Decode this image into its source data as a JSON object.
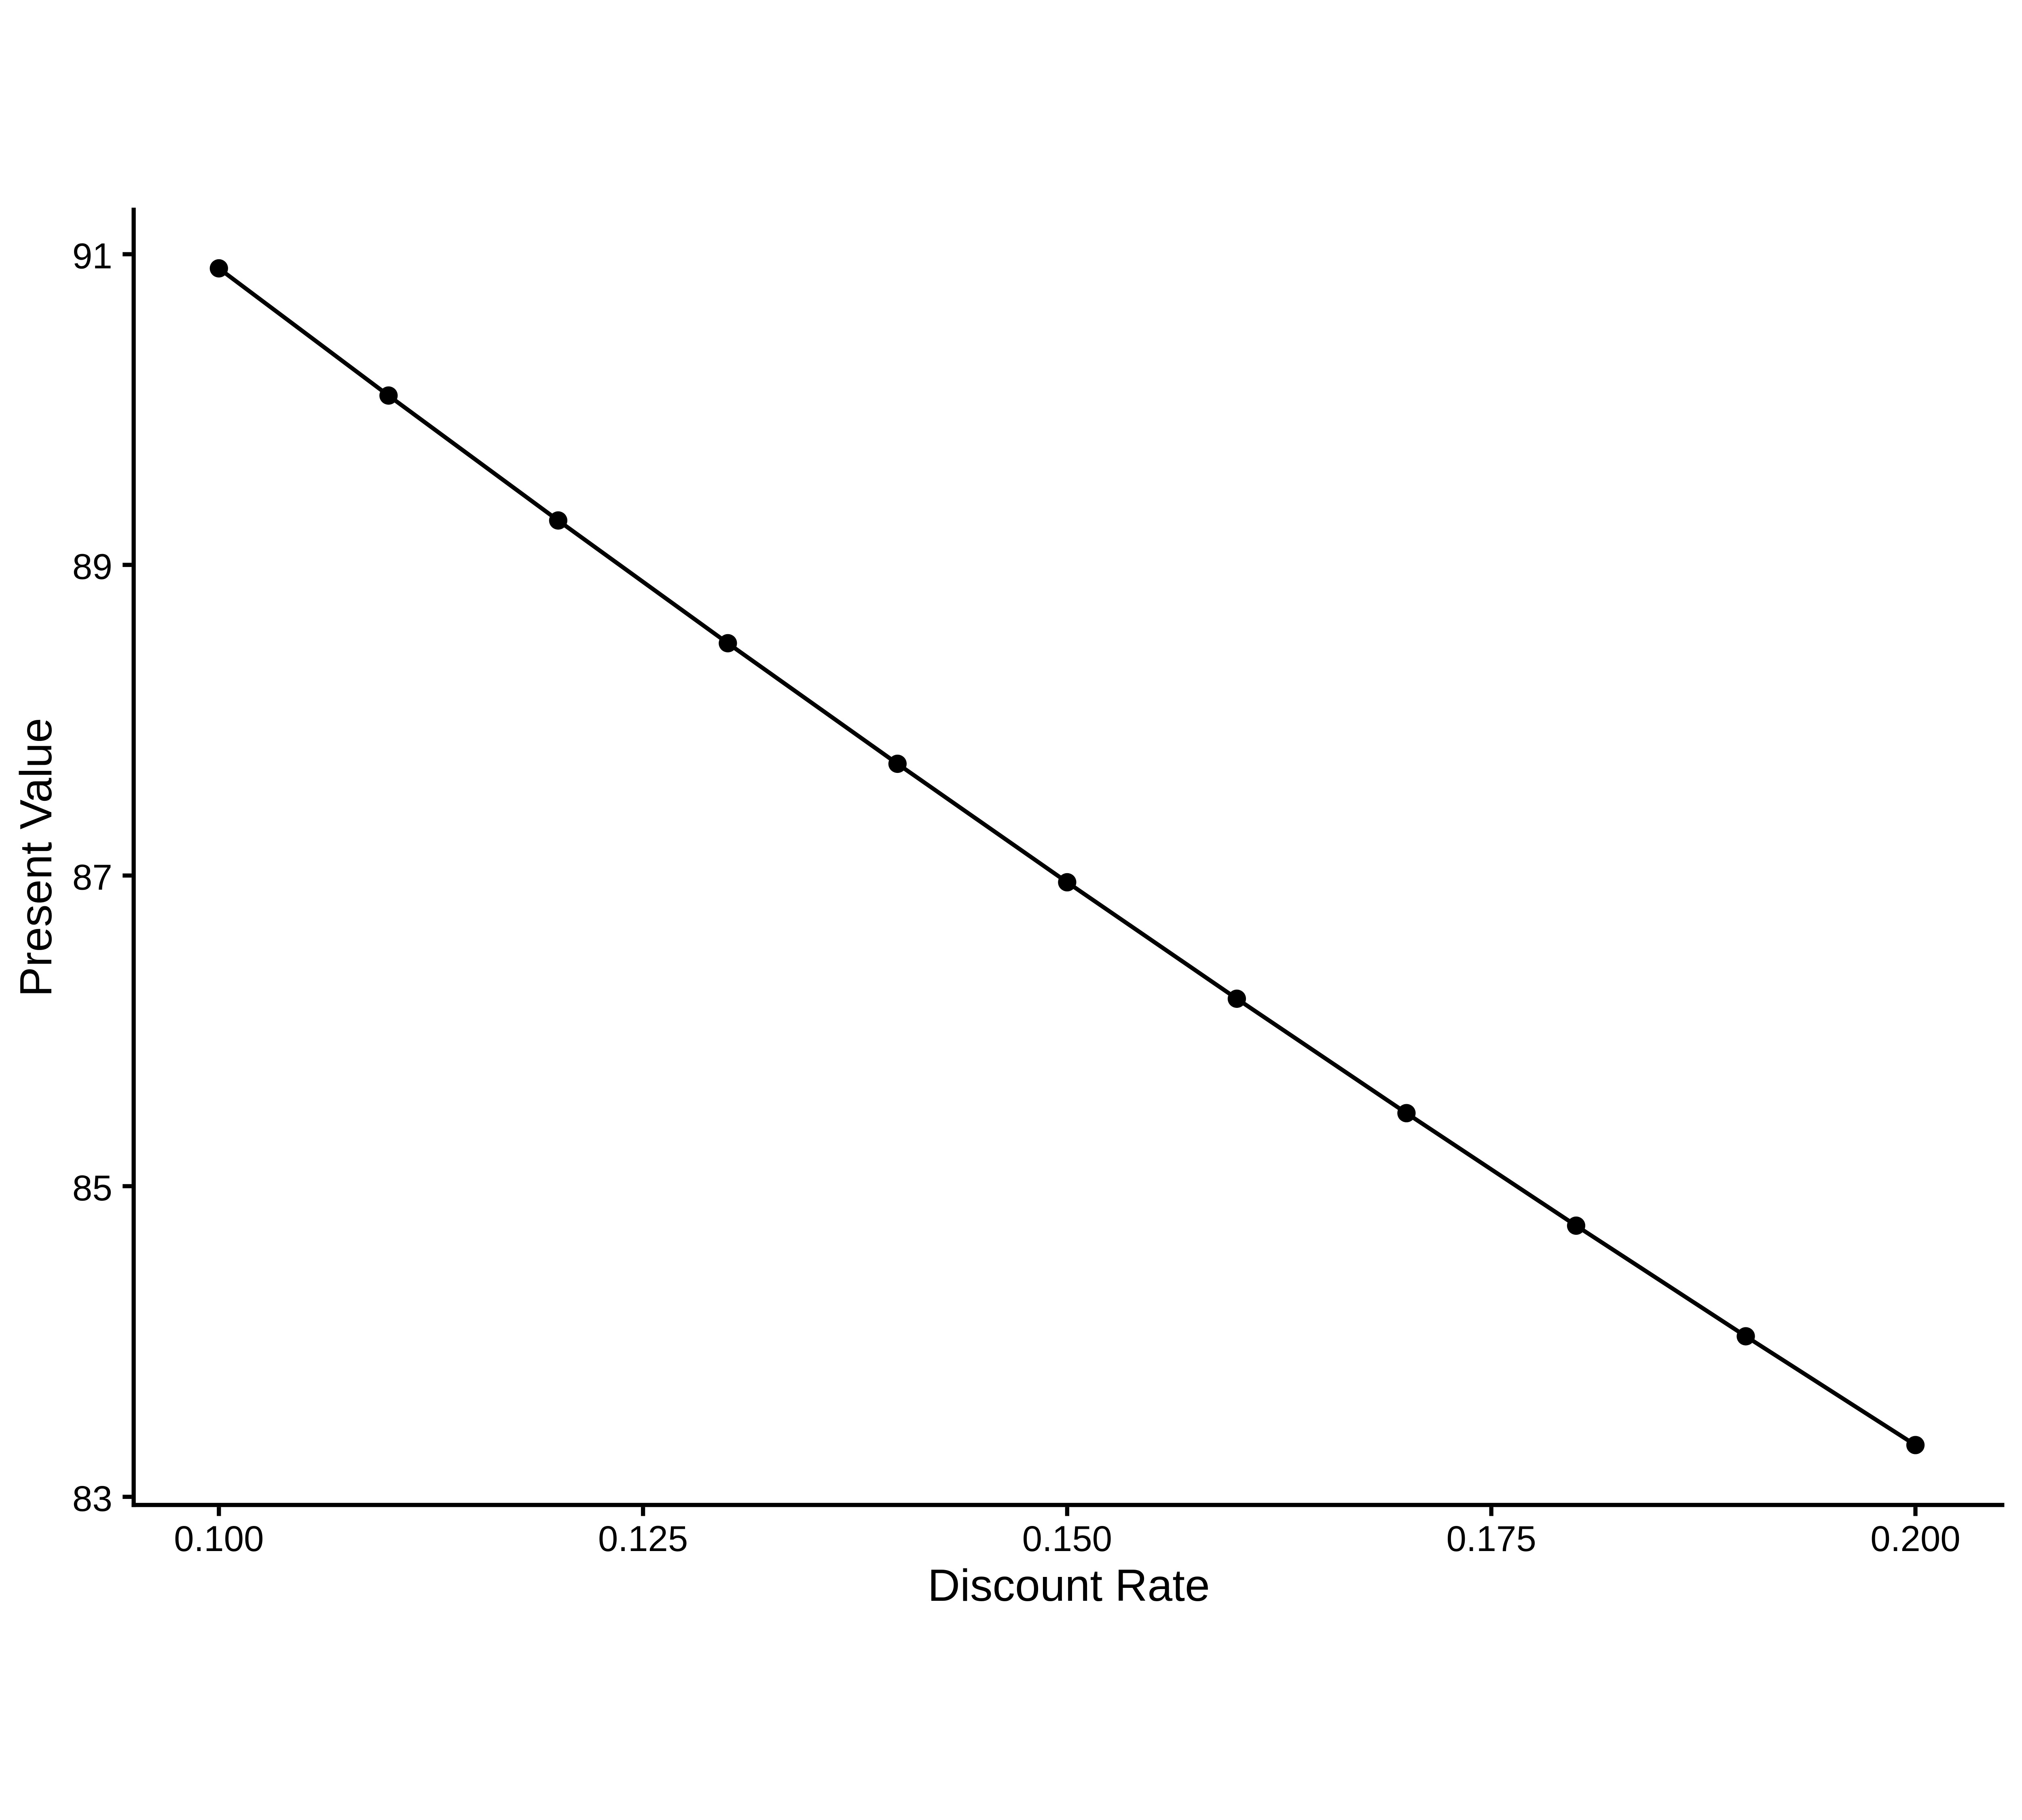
{
  "chart_data": {
    "type": "line",
    "title": "",
    "xlabel": "Discount Rate",
    "ylabel": "Present Value",
    "x": [
      0.1,
      0.11,
      0.12,
      0.13,
      0.14,
      0.15,
      0.16,
      0.17,
      0.18,
      0.19,
      0.2
    ],
    "series": [
      {
        "name": "Present Value",
        "values": [
          90.9091,
          90.0901,
          89.2857,
          88.4956,
          87.7193,
          86.9565,
          86.2069,
          85.4701,
          84.7458,
          84.0336,
          83.3333
        ]
      }
    ],
    "x_ticks": {
      "values": [
        0.1,
        0.125,
        0.15,
        0.175,
        0.2
      ],
      "labels": [
        "0.100",
        "0.125",
        "0.150",
        "0.175",
        "0.200"
      ]
    },
    "y_ticks": {
      "values": [
        91,
        89,
        87,
        85,
        83
      ],
      "labels": [
        "91",
        "89",
        "87",
        "85",
        "83"
      ]
    },
    "xlim": [
      0.0949,
      0.2052
    ],
    "ylim": [
      82.95,
      91.3
    ],
    "grid": false,
    "legend": "none",
    "line_color": "#000000",
    "marker_color": "#000000",
    "axis_color": "#000000",
    "background": "#FFFFFF"
  }
}
